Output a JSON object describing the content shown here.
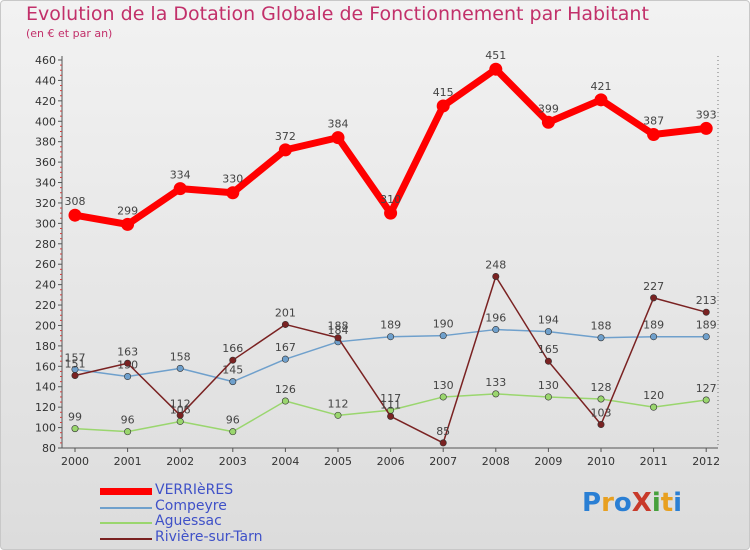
{
  "title": "Evolution de la Dotation Globale de Fonctionnement par Habitant",
  "subtitle": "(en € et par an)",
  "logo": {
    "text": "ProXiti",
    "colors": [
      "#2a7fd4",
      "#e8a020",
      "#2a7fd4",
      "#c83a2a",
      "#46a03c",
      "#e8a020",
      "#2a7fd4"
    ]
  },
  "chart_data": {
    "type": "line",
    "title": "Evolution de la Dotation Globale de Fonctionnement par Habitant",
    "subtitle": "(en € et par an)",
    "xlabel": "",
    "ylabel": "",
    "ylim": [
      80,
      460
    ],
    "y_ticks": [
      80,
      100,
      120,
      140,
      160,
      180,
      200,
      220,
      240,
      260,
      280,
      300,
      320,
      340,
      360,
      380,
      400,
      420,
      440,
      460
    ],
    "categories": [
      "2000",
      "2001",
      "2002",
      "2003",
      "2004",
      "2005",
      "2006",
      "2007",
      "2008",
      "2009",
      "2010",
      "2011",
      "2012"
    ],
    "grid": false,
    "legend_position": "bottom-left",
    "series": [
      {
        "name": "VERRIèRES",
        "color": "#ff0000",
        "values": [
          308,
          299,
          334,
          330,
          372,
          384,
          310,
          415,
          451,
          399,
          421,
          387,
          393
        ]
      },
      {
        "name": "Compeyre",
        "color": "#6fa0cc",
        "values": [
          157,
          150,
          158,
          145,
          167,
          184,
          189,
          190,
          196,
          194,
          188,
          189,
          189
        ]
      },
      {
        "name": "Aguessac",
        "color": "#9ad66e",
        "values": [
          99,
          96,
          106,
          96,
          126,
          112,
          117,
          130,
          133,
          130,
          128,
          120,
          127
        ]
      },
      {
        "name": "Rivière-sur-Tarn",
        "color": "#7a2222",
        "values": [
          151,
          163,
          112,
          166,
          201,
          188,
          111,
          85,
          248,
          165,
          103,
          227,
          213
        ]
      }
    ],
    "point_labels": [
      [
        "308",
        "299",
        "334",
        "330",
        "372",
        "384",
        "310",
        "415",
        "451",
        "399",
        "421",
        "387",
        "393"
      ],
      [
        "157",
        "150",
        "158",
        "145",
        "167",
        "184",
        "189",
        "190",
        "196",
        "194",
        "188",
        "189",
        "189"
      ],
      [
        "99",
        "96",
        "106",
        "96",
        "126",
        "112",
        "117",
        "130",
        "133",
        "130",
        "128",
        "120",
        "127"
      ],
      [
        "151",
        "163",
        "112",
        "166",
        "201",
        "188",
        "111",
        "85",
        "248",
        "165",
        "103",
        "227",
        "213"
      ]
    ]
  }
}
